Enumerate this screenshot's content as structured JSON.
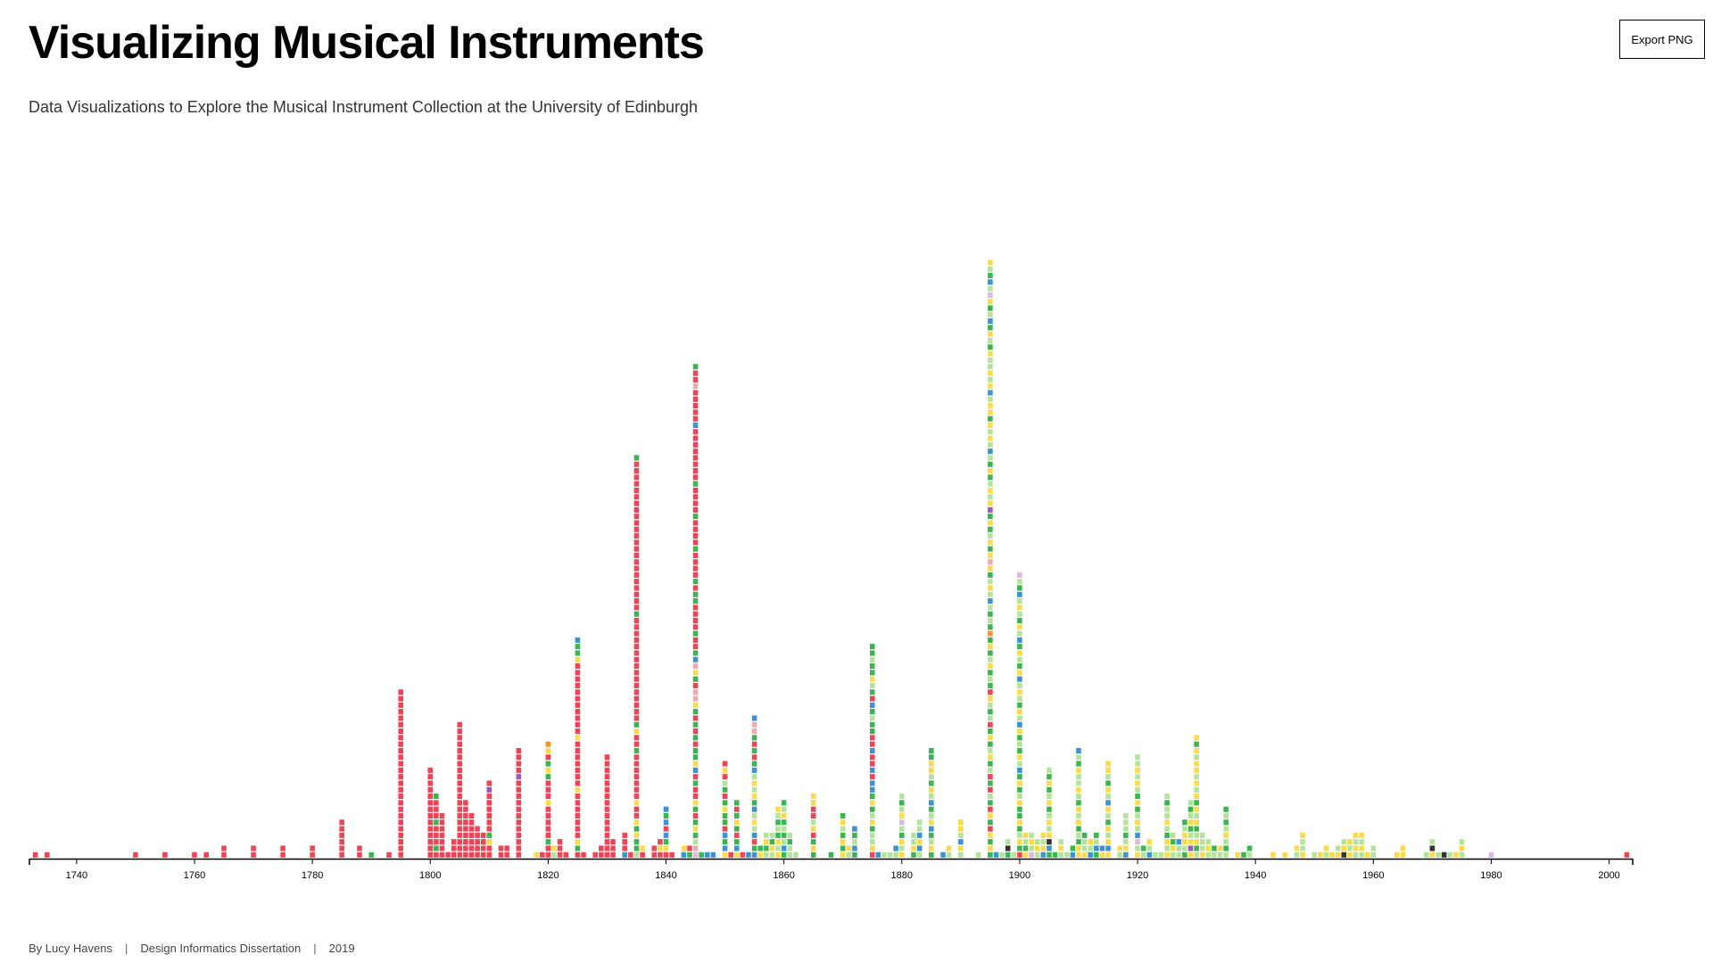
{
  "page": {
    "title": "Visualizing Musical Instruments",
    "subtitle": "Data Visualizations to Explore the Musical Instrument Collection at the University of Edinburgh",
    "export_label": "Export PNG",
    "footer": {
      "author": "By Lucy Havens",
      "sep1": "|",
      "project": "Design Informatics Dissertation",
      "sep2": "|",
      "year": "2019"
    }
  },
  "colors": {
    "red": "#EF4458",
    "green": "#3DB452",
    "light_green": "#B4E49C",
    "yellow": "#FADB4B",
    "blue": "#3D93D0",
    "orange": "#F7932C",
    "pink": "#F2A8B0",
    "lavender": "#DBB9E3",
    "purple": "#9B59B6",
    "dark": "#333333",
    "axis": "#000000"
  },
  "chart_data": {
    "type": "stacked unit columns",
    "x_domain": [
      1732,
      2004
    ],
    "x_ticks": [
      1740,
      1760,
      1780,
      1800,
      1820,
      1840,
      1860,
      1880,
      1900,
      1920,
      1940,
      1960,
      1980,
      2000
    ],
    "legend": "none",
    "grid": false,
    "color_codes": {
      "R": "red",
      "G": "green",
      "L": "light_green",
      "Y": "yellow",
      "B": "blue",
      "O": "orange",
      "P": "pink",
      "V": "lavender",
      "U": "purple",
      "D": "dark"
    },
    "columns": [
      {
        "year": 1733,
        "stack": "R"
      },
      {
        "year": 1735,
        "stack": "R"
      },
      {
        "year": 1750,
        "stack": "R"
      },
      {
        "year": 1755,
        "stack": "R"
      },
      {
        "year": 1760,
        "stack": "R"
      },
      {
        "year": 1762,
        "stack": "R"
      },
      {
        "year": 1765,
        "stack": "RR"
      },
      {
        "year": 1770,
        "stack": "RR"
      },
      {
        "year": 1775,
        "stack": "RR"
      },
      {
        "year": 1780,
        "stack": "RR"
      },
      {
        "year": 1785,
        "stack": "RRRRRR"
      },
      {
        "year": 1788,
        "stack": "RR"
      },
      {
        "year": 1790,
        "stack": "G"
      },
      {
        "year": 1793,
        "stack": "R"
      },
      {
        "year": 1795,
        "stack": "RRRRRRRRRRRRRRRRRRRRRRRRRR"
      },
      {
        "year": 1800,
        "stack": "RRRRRRRRRRRRRR"
      },
      {
        "year": 1801,
        "stack": "RGRRRGRRRG"
      },
      {
        "year": 1802,
        "stack": "RRRRRRR"
      },
      {
        "year": 1803,
        "stack": "R"
      },
      {
        "year": 1804,
        "stack": "RRR"
      },
      {
        "year": 1805,
        "stack": "RRRRRRRRRRRRRRRRRRRRR"
      },
      {
        "year": 1806,
        "stack": "RRRRRRRRR"
      },
      {
        "year": 1807,
        "stack": "RRRRRRR"
      },
      {
        "year": 1808,
        "stack": "RRRRR"
      },
      {
        "year": 1809,
        "stack": "RRRR"
      },
      {
        "year": 1810,
        "stack": "RRYGRRRRRRUR"
      },
      {
        "year": 1812,
        "stack": "RR"
      },
      {
        "year": 1813,
        "stack": "RR"
      },
      {
        "year": 1815,
        "stack": "RRRRRRRRRRRRURRRR"
      },
      {
        "year": 1818,
        "stack": "Y"
      },
      {
        "year": 1819,
        "stack": "R"
      },
      {
        "year": 1820,
        "stack": "RRGRRRRRYRRRGYGRYO"
      },
      {
        "year": 1821,
        "stack": "LY"
      },
      {
        "year": 1822,
        "stack": "RRR"
      },
      {
        "year": 1823,
        "stack": "R"
      },
      {
        "year": 1825,
        "stack": "RGYRRRRRRRYRRRRRRRYRRRRRRRRRRRYGGB"
      },
      {
        "year": 1826,
        "stack": "R"
      },
      {
        "year": 1828,
        "stack": "R"
      },
      {
        "year": 1829,
        "stack": "RR"
      },
      {
        "year": 1830,
        "stack": "RRRRRRRRRRRRRRRR"
      },
      {
        "year": 1831,
        "stack": "RRR"
      },
      {
        "year": 1833,
        "stack": "BRRR"
      },
      {
        "year": 1834,
        "stack": "R"
      },
      {
        "year": 1835,
        "stack": "LGGYGYRRYRRRRRRRGRRYGRRRRRRRRRRRRRRRRGRRRRRRRRRRRRRRRRRRRRRRRG"
      },
      {
        "year": 1836,
        "stack": "RY"
      },
      {
        "year": 1838,
        "stack": "RR"
      },
      {
        "year": 1839,
        "stack": "RYR"
      },
      {
        "year": 1840,
        "stack": "RYGBRBGB"
      },
      {
        "year": 1841,
        "stack": "R"
      },
      {
        "year": 1843,
        "stack": "BY"
      },
      {
        "year": 1844,
        "stack": "GR"
      },
      {
        "year": 1845,
        "stack": "VPLGYGRGYRRGRBYGGRGRGRGYPPRGYPBGRRGRRRRGGRGRRRRGRRRRGRRRRGRRRRRRRRBRRRRRPRRG"
      },
      {
        "year": 1846,
        "stack": "G"
      },
      {
        "year": 1847,
        "stack": "B"
      },
      {
        "year": 1848,
        "stack": "B"
      },
      {
        "year": 1850,
        "stack": "YBGBRGGYGRGLRYR"
      },
      {
        "year": 1851,
        "stack": "R"
      },
      {
        "year": 1852,
        "stack": "YBGRGYGRG"
      },
      {
        "year": 1853,
        "stack": "R"
      },
      {
        "year": 1854,
        "stack": "B"
      },
      {
        "year": 1855,
        "stack": "BGRBLYLBGYLYLBGRGRGPPB"
      },
      {
        "year": 1856,
        "stack": "YG"
      },
      {
        "year": 1857,
        "stack": "LGYL"
      },
      {
        "year": 1858,
        "stack": "LYGL"
      },
      {
        "year": 1859,
        "stack": "YLYGLGLY"
      },
      {
        "year": 1860,
        "stack": "GBLGLGYLG"
      },
      {
        "year": 1861,
        "stack": "LLGL"
      },
      {
        "year": 1862,
        "stack": "L"
      },
      {
        "year": 1865,
        "stack": "GYGRYLRRYY"
      },
      {
        "year": 1868,
        "stack": "G"
      },
      {
        "year": 1870,
        "stack": "YGYGLYG"
      },
      {
        "year": 1871,
        "stack": "LY"
      },
      {
        "year": 1872,
        "stack": "GBLGB"
      },
      {
        "year": 1875,
        "stack": "RYLLGYLGYGBBRBRRBRRGGLGBRGLYGGLGG"
      },
      {
        "year": 1876,
        "stack": "B"
      },
      {
        "year": 1877,
        "stack": "L"
      },
      {
        "year": 1878,
        "stack": "L"
      },
      {
        "year": 1879,
        "stack": "LB"
      },
      {
        "year": 1880,
        "stack": "YLYGLVYLGL"
      },
      {
        "year": 1882,
        "stack": "GYLL"
      },
      {
        "year": 1883,
        "stack": "LBYBLL"
      },
      {
        "year": 1885,
        "stack": "GYLGBYLGBLYGLYYGG"
      },
      {
        "year": 1887,
        "stack": "B"
      },
      {
        "year": 1888,
        "stack": "LY"
      },
      {
        "year": 1890,
        "stack": "LYBLYY"
      },
      {
        "year": 1893,
        "stack": "L"
      },
      {
        "year": 1895,
        "stack": "GYGYRGYRGLRGRLGYLGYGRLGLYRGLGYLGYGOGLGLBLYLGYPYGYLGYGUYLYLGYGLBLYLYGYYLBYLYLLYGLYGBLGYVLBGLY"
      },
      {
        "year": 1896,
        "stack": "B"
      },
      {
        "year": 1897,
        "stack": "L"
      },
      {
        "year": 1898,
        "stack": "GDL"
      },
      {
        "year": 1899,
        "stack": "L"
      },
      {
        "year": 1900,
        "stack": "RGYLGYGGYLGYGBLYGLGYBLYGLYLBYGLYGBLYGLYLBGLV"
      },
      {
        "year": 1901,
        "stack": "YGLY"
      },
      {
        "year": 1902,
        "stack": "VLYL"
      },
      {
        "year": 1903,
        "stack": "LYL"
      },
      {
        "year": 1904,
        "stack": "BYLY"
      },
      {
        "year": 1905,
        "stack": "GBDYLYLGYLGYGL"
      },
      {
        "year": 1906,
        "stack": "G"
      },
      {
        "year": 1907,
        "stack": "LYL"
      },
      {
        "year": 1908,
        "stack": "L"
      },
      {
        "year": 1909,
        "stack": "BG"
      },
      {
        "year": 1910,
        "stack": "YYGLGYLYGLYLLYGLB"
      },
      {
        "year": 1911,
        "stack": "YLLG"
      },
      {
        "year": 1912,
        "stack": "BLY"
      },
      {
        "year": 1913,
        "stack": "GBLG"
      },
      {
        "year": 1914,
        "stack": "YB"
      },
      {
        "year": 1915,
        "stack": "YBYLYGLYBLYGLYY"
      },
      {
        "year": 1917,
        "stack": "LY"
      },
      {
        "year": 1918,
        "stack": "BYLGLLL"
      },
      {
        "year": 1920,
        "stack": "YLVBLYLGYGLYLYLL"
      },
      {
        "year": 1921,
        "stack": "LG"
      },
      {
        "year": 1922,
        "stack": "BLY"
      },
      {
        "year": 1923,
        "stack": "L"
      },
      {
        "year": 1924,
        "stack": "L"
      },
      {
        "year": 1925,
        "stack": "YLYGLYLLGL"
      },
      {
        "year": 1926,
        "stack": "LYGL"
      },
      {
        "year": 1927,
        "stack": "LLB"
      },
      {
        "year": 1928,
        "stack": "GLYYLG"
      },
      {
        "year": 1929,
        "stack": "YUYLGYLGL"
      },
      {
        "year": 1930,
        "stack": "LGYLGYLYGYLYLYYLYGY"
      },
      {
        "year": 1931,
        "stack": "YLLL"
      },
      {
        "year": 1932,
        "stack": "LYL"
      },
      {
        "year": 1933,
        "stack": "LG"
      },
      {
        "year": 1934,
        "stack": "LY"
      },
      {
        "year": 1935,
        "stack": "LGLYLGLG"
      },
      {
        "year": 1937,
        "stack": "Y"
      },
      {
        "year": 1938,
        "stack": "G"
      },
      {
        "year": 1939,
        "stack": "LG"
      },
      {
        "year": 1943,
        "stack": "Y"
      },
      {
        "year": 1945,
        "stack": "Y"
      },
      {
        "year": 1947,
        "stack": "LY"
      },
      {
        "year": 1948,
        "stack": "YLLY"
      },
      {
        "year": 1950,
        "stack": "L"
      },
      {
        "year": 1951,
        "stack": "Y"
      },
      {
        "year": 1952,
        "stack": "LY"
      },
      {
        "year": 1953,
        "stack": "Y"
      },
      {
        "year": 1954,
        "stack": "YL"
      },
      {
        "year": 1955,
        "stack": "DYL"
      },
      {
        "year": 1956,
        "stack": "YLY"
      },
      {
        "year": 1957,
        "stack": "LYLY"
      },
      {
        "year": 1958,
        "stack": "LYLY"
      },
      {
        "year": 1959,
        "stack": "Y"
      },
      {
        "year": 1960,
        "stack": "LL"
      },
      {
        "year": 1964,
        "stack": "Y"
      },
      {
        "year": 1965,
        "stack": "YY"
      },
      {
        "year": 1969,
        "stack": "L"
      },
      {
        "year": 1970,
        "stack": "YDL"
      },
      {
        "year": 1971,
        "stack": "L"
      },
      {
        "year": 1972,
        "stack": "D"
      },
      {
        "year": 1973,
        "stack": "L"
      },
      {
        "year": 1974,
        "stack": "Y"
      },
      {
        "year": 1975,
        "stack": "LYL"
      },
      {
        "year": 1980,
        "stack": "V"
      },
      {
        "year": 2003,
        "stack": "R"
      }
    ]
  }
}
